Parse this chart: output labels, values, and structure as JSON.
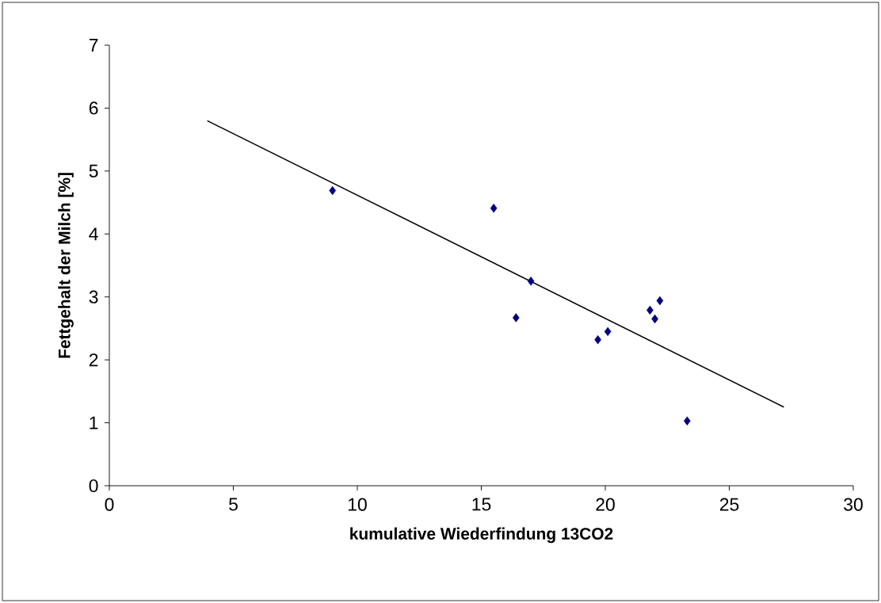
{
  "chart_data": {
    "type": "scatter",
    "xlabel": "kumulative Wiederfindung 13CO2",
    "ylabel": "Fettgehalt der Milch [%]",
    "xlim": [
      0,
      30
    ],
    "ylim": [
      0,
      7
    ],
    "xticks": [
      0,
      5,
      10,
      15,
      20,
      25,
      30
    ],
    "yticks": [
      0,
      1,
      2,
      3,
      4,
      5,
      6,
      7
    ],
    "series": [
      {
        "marker": "diamond",
        "color": "#000080",
        "x": [
          9.0,
          15.5,
          17.0,
          16.4,
          19.7,
          20.1,
          21.8,
          22.2,
          22.0,
          23.3
        ],
        "values": [
          4.69,
          4.41,
          3.25,
          2.67,
          2.32,
          2.45,
          2.79,
          2.94,
          2.65,
          1.03
        ]
      },
      {
        "type": "line",
        "color": "#000000",
        "x": [
          3.95,
          27.2
        ],
        "values": [
          5.8,
          1.25
        ]
      }
    ]
  }
}
